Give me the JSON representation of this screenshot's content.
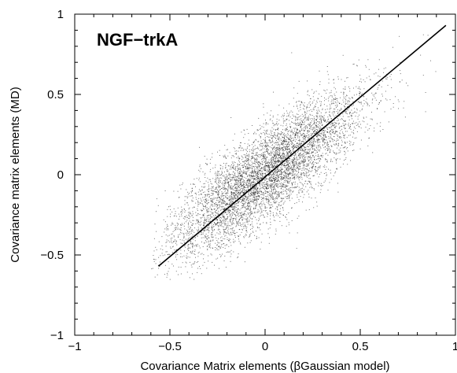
{
  "chart_data": {
    "type": "scatter",
    "title": "",
    "annotation": "NGF−trkA",
    "xlabel": "Covariance Matrix elements (βGaussian model)",
    "ylabel": "Covariance matrix elements (MD)",
    "xlim": [
      -1,
      1
    ],
    "ylim": [
      -1,
      1
    ],
    "x_ticks": [
      -1,
      -0.5,
      0,
      0.5,
      1
    ],
    "x_tick_labels": [
      "−1",
      "−0.5",
      "0",
      "0.5",
      "1"
    ],
    "y_ticks": [
      -1,
      -0.5,
      0,
      0.5,
      1
    ],
    "y_tick_labels": [
      "−1",
      "−0.5",
      "0",
      "0.5",
      "1"
    ],
    "grid": false,
    "legend": "none",
    "series": [
      {
        "kind": "scatter",
        "color": "#000000",
        "description_points": "dense cloud of covariance element pairs roughly along the diagonal",
        "point_count": 6000,
        "x_range": [
          -0.6,
          0.95
        ],
        "center": [
          0,
          0
        ],
        "correlation": 0.88
      },
      {
        "kind": "line",
        "color": "#000000",
        "x": [
          -0.56,
          0.95
        ],
        "y": [
          -0.57,
          0.93
        ]
      }
    ]
  }
}
